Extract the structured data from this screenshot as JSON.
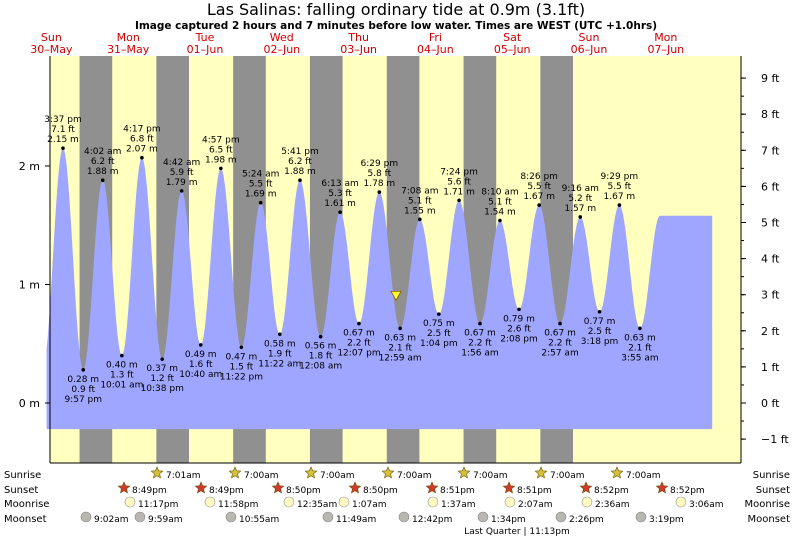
{
  "title": "Las Salinas: falling  ordinary tide at 0.9m (3.1ft)",
  "subtitle": "Image captured 2 hours and 7 minutes before low water. Times are WEST (UTC +1.0hrs)",
  "colors": {
    "day_bg": "#ffffc0",
    "night_bg": "#909090",
    "water": "#9fa6ff",
    "header": "#d00000"
  },
  "days": [
    {
      "name": "Sun",
      "date": "30–May"
    },
    {
      "name": "Mon",
      "date": "31–May"
    },
    {
      "name": "Tue",
      "date": "01–Jun"
    },
    {
      "name": "Wed",
      "date": "02–Jun"
    },
    {
      "name": "Thu",
      "date": "03–Jun"
    },
    {
      "name": "Fri",
      "date": "04–Jun"
    },
    {
      "name": "Sat",
      "date": "05–Jun"
    },
    {
      "name": "Sun",
      "date": "06–Jun"
    },
    {
      "name": "Mon",
      "date": "07–Jun"
    }
  ],
  "chart_data": {
    "type": "area",
    "x_unit": "hours since 30-May 00:00 (WEST)",
    "y_left": {
      "unit": "m",
      "ticks": [
        "0 m",
        "1 m",
        "2 m"
      ],
      "range": [
        -0.45,
        2.95
      ]
    },
    "y_right": {
      "unit": "ft",
      "ticks": [
        "−1 ft",
        "0 ft",
        "1 ft",
        "2 ft",
        "3 ft",
        "4 ft",
        "5 ft",
        "6 ft",
        "7 ft",
        "8 ft",
        "9 ft"
      ]
    },
    "current": {
      "level_m": 0.9,
      "level_ft": 3.1,
      "state": "falling"
    },
    "extremes": [
      {
        "type": "high",
        "time": "3:37 pm",
        "ft": "7.1 ft",
        "m": "2.15 m",
        "x": 15.62,
        "h": 2.15
      },
      {
        "type": "low",
        "time": "9:57 pm",
        "ft": "0.9 ft",
        "m": "0.28 m",
        "x": 21.95,
        "h": 0.28
      },
      {
        "type": "high",
        "time": "4:02 am",
        "ft": "6.2 ft",
        "m": "1.88 m",
        "x": 28.03,
        "h": 1.88
      },
      {
        "type": "low",
        "time": "10:01 am",
        "ft": "1.3 ft",
        "m": "0.40 m",
        "x": 34.02,
        "h": 0.4
      },
      {
        "type": "high",
        "time": "4:17 pm",
        "ft": "6.8 ft",
        "m": "2.07 m",
        "x": 40.28,
        "h": 2.07
      },
      {
        "type": "low",
        "time": "10:38 pm",
        "ft": "1.2 ft",
        "m": "0.37 m",
        "x": 46.63,
        "h": 0.37
      },
      {
        "type": "high",
        "time": "4:42 am",
        "ft": "5.9 ft",
        "m": "1.79 m",
        "x": 52.7,
        "h": 1.79
      },
      {
        "type": "low",
        "time": "10:40 am",
        "ft": "1.6 ft",
        "m": "0.49 m",
        "x": 58.67,
        "h": 0.49
      },
      {
        "type": "high",
        "time": "4:57 pm",
        "ft": "6.5 ft",
        "m": "1.98 m",
        "x": 64.95,
        "h": 1.98
      },
      {
        "type": "low",
        "time": "11:22 pm",
        "ft": "1.5 ft",
        "m": "0.47 m",
        "x": 71.37,
        "h": 0.47
      },
      {
        "type": "high",
        "time": "5:24 am",
        "ft": "5.5 ft",
        "m": "1.69 m",
        "x": 77.4,
        "h": 1.69
      },
      {
        "type": "low",
        "time": "11:22 am",
        "ft": "1.9 ft",
        "m": "0.58 m",
        "x": 83.37,
        "h": 0.58
      },
      {
        "type": "high",
        "time": "5:41 pm",
        "ft": "6.2 ft",
        "m": "1.88 m",
        "x": 89.68,
        "h": 1.88
      },
      {
        "type": "low",
        "time": "12:08 am",
        "ft": "1.8 ft",
        "m": "0.56 m",
        "x": 96.13,
        "h": 0.56
      },
      {
        "type": "high",
        "time": "6:13 am",
        "ft": "5.3 ft",
        "m": "1.61 m",
        "x": 102.22,
        "h": 1.61
      },
      {
        "type": "low",
        "time": "12:07 pm",
        "ft": "2.2 ft",
        "m": "0.67 m",
        "x": 108.12,
        "h": 0.67
      },
      {
        "type": "high",
        "time": "6:29 pm",
        "ft": "5.8 ft",
        "m": "1.78 m",
        "x": 114.48,
        "h": 1.78
      },
      {
        "type": "low",
        "time": "12:59 am",
        "ft": "2.1 ft",
        "m": "0.63 m",
        "x": 120.98,
        "h": 0.63
      },
      {
        "type": "high",
        "time": "7:08 am",
        "ft": "5.1 ft",
        "m": "1.55 m",
        "x": 127.13,
        "h": 1.55
      },
      {
        "type": "low",
        "time": "1:04 pm",
        "ft": "2.5 ft",
        "m": "0.75 m",
        "x": 133.07,
        "h": 0.75
      },
      {
        "type": "high",
        "time": "7:24 pm",
        "ft": "5.6 ft",
        "m": "1.71 m",
        "x": 139.4,
        "h": 1.71
      },
      {
        "type": "low",
        "time": "1:56 am",
        "ft": "2.2 ft",
        "m": "0.67 m",
        "x": 145.93,
        "h": 0.67
      },
      {
        "type": "high",
        "time": "8:10 am",
        "ft": "5.1 ft",
        "m": "1.54 m",
        "x": 152.17,
        "h": 1.54
      },
      {
        "type": "low",
        "time": "2:08 pm",
        "ft": "2.6 ft",
        "m": "0.79 m",
        "x": 158.13,
        "h": 0.79
      },
      {
        "type": "high",
        "time": "8:26 pm",
        "ft": "5.5 ft",
        "m": "1.67 m",
        "x": 164.43,
        "h": 1.67
      },
      {
        "type": "low",
        "time": "2:57 am",
        "ft": "2.2 ft",
        "m": "0.67 m",
        "x": 170.95,
        "h": 0.67
      },
      {
        "type": "high",
        "time": "9:16 am",
        "ft": "5.2 ft",
        "m": "1.57 m",
        "x": 177.27,
        "h": 1.57
      },
      {
        "type": "low",
        "time": "3:18 pm",
        "ft": "2.5 ft",
        "m": "0.77 m",
        "x": 183.3,
        "h": 0.77
      },
      {
        "type": "high",
        "time": "9:29 pm",
        "ft": "5.5 ft",
        "m": "1.67 m",
        "x": 189.48,
        "h": 1.67
      },
      {
        "type": "low",
        "time": "3:55 am",
        "ft": "2.1 ft",
        "m": "0.63 m",
        "x": 195.92,
        "h": 0.63
      }
    ]
  },
  "sun_moon": {
    "labels": {
      "sunrise": "Sunrise",
      "sunset": "Sunset",
      "moonrise": "Moonrise",
      "moonset": "Moonset"
    },
    "sunrise": [
      "7:01am",
      "7:00am",
      "7:00am",
      "7:00am",
      "7:00am",
      "7:00am",
      "7:00am"
    ],
    "sunset": [
      "8:49pm",
      "8:49pm",
      "8:50pm",
      "8:50pm",
      "8:51pm",
      "8:51pm",
      "8:52pm",
      "8:52pm"
    ],
    "moonrise": [
      "11:17pm",
      "11:58pm",
      "12:35am",
      "1:07am",
      "1:37am",
      "2:07am",
      "2:36am",
      "3:06am"
    ],
    "moonset": [
      "9:02am",
      "9:59am",
      "10:55am",
      "11:49am",
      "12:42pm",
      "1:34pm",
      "2:26pm",
      "3:19pm"
    ],
    "moon_phase_note": "Last Quarter | 11:13pm"
  }
}
